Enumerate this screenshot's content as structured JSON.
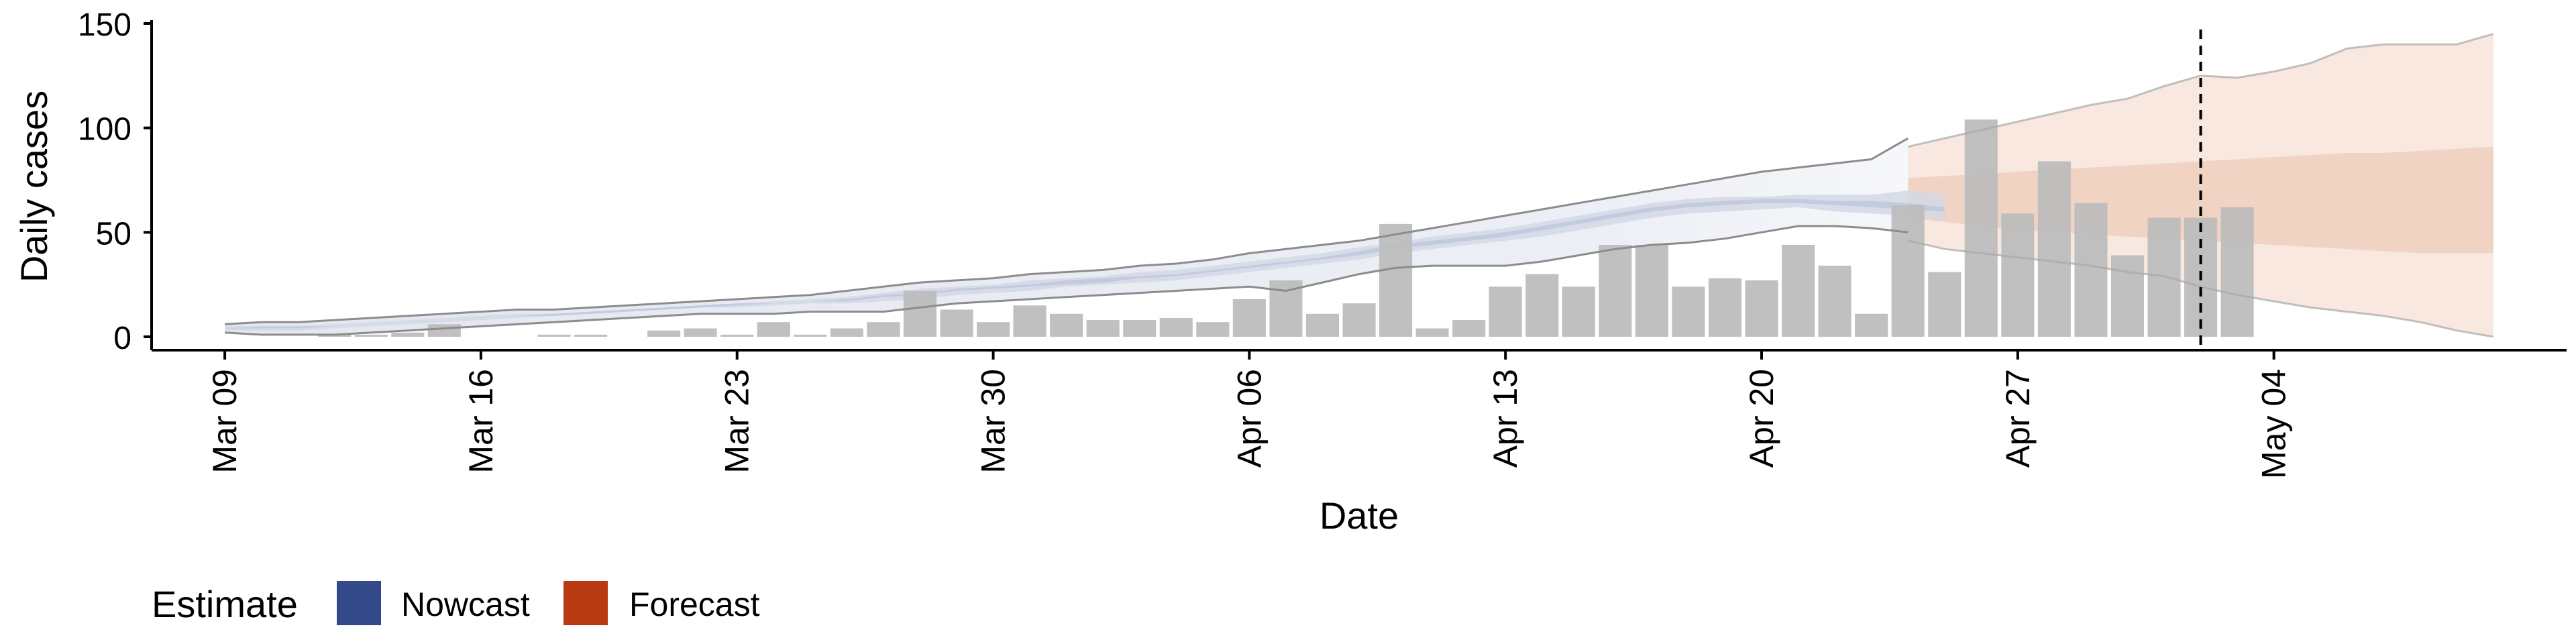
{
  "chart_data": {
    "type": "bar",
    "xlabel": "Date",
    "ylabel": "Daily cases",
    "ylim": [
      0,
      150
    ],
    "yticks": [
      0,
      50,
      100,
      150
    ],
    "xlim": [
      "2020-03-07",
      "2020-05-12"
    ],
    "x_ticks": [
      {
        "date": "2020-03-09",
        "label": "Mar 09"
      },
      {
        "date": "2020-03-16",
        "label": "Mar 16"
      },
      {
        "date": "2020-03-23",
        "label": "Mar 23"
      },
      {
        "date": "2020-03-30",
        "label": "Mar 30"
      },
      {
        "date": "2020-04-06",
        "label": "Apr 06"
      },
      {
        "date": "2020-04-13",
        "label": "Apr 13"
      },
      {
        "date": "2020-04-20",
        "label": "Apr 20"
      },
      {
        "date": "2020-04-27",
        "label": "Apr 27"
      },
      {
        "date": "2020-05-04",
        "label": "May 04"
      }
    ],
    "grid": false,
    "legend": {
      "position": "bottom-left",
      "title": "Estimate",
      "entries": [
        {
          "name": "Nowcast",
          "color": "#33498a"
        },
        {
          "name": "Forecast",
          "color": "#b83a10"
        }
      ]
    },
    "bar_color": "#bdbdbd",
    "reported_cases": {
      "start_date": "2020-03-09",
      "values": [
        0,
        0,
        0,
        1,
        1,
        2,
        6,
        0,
        0,
        1,
        1,
        0,
        3,
        4,
        1,
        7,
        1,
        4,
        7,
        22,
        13,
        7,
        15,
        11,
        8,
        8,
        9,
        7,
        18,
        27,
        11,
        16,
        54,
        4,
        8,
        24,
        30,
        24,
        44,
        44,
        24,
        28,
        27,
        44,
        34,
        11,
        63,
        31,
        104,
        59,
        84,
        64,
        39,
        57,
        57,
        62
      ]
    },
    "forecast_date": "2020-05-02",
    "nowcast": {
      "color": "#33498a",
      "dates_start": "2020-03-09",
      "band_outer": {
        "lower": [
          2,
          1,
          1,
          1,
          2,
          3,
          4,
          5,
          6,
          7,
          8,
          9,
          10,
          11,
          11,
          11,
          12,
          12,
          12,
          14,
          16,
          17,
          18,
          19,
          20,
          21,
          22,
          23,
          24,
          22,
          26,
          30,
          33,
          34,
          34,
          34,
          36,
          39,
          42,
          44,
          45,
          47,
          50,
          53,
          53,
          52,
          50,
          48
        ],
        "upper": [
          6,
          7,
          7,
          8,
          9,
          10,
          11,
          12,
          13,
          13,
          14,
          15,
          16,
          17,
          18,
          19,
          20,
          22,
          24,
          26,
          27,
          28,
          30,
          31,
          32,
          34,
          35,
          37,
          40,
          42,
          44,
          46,
          49,
          52,
          55,
          58,
          61,
          64,
          67,
          70,
          73,
          76,
          79,
          81,
          83,
          85,
          95,
          null
        ]
      },
      "band_mid": {
        "lower": [
          3,
          3,
          3,
          4,
          5,
          6,
          7,
          8,
          9,
          10,
          11,
          12,
          13,
          14,
          14,
          15,
          16,
          16,
          17,
          18,
          20,
          21,
          22,
          24,
          25,
          26,
          27,
          29,
          31,
          33,
          35,
          37,
          40,
          42,
          44,
          46,
          48,
          51,
          54,
          57,
          59,
          60,
          61,
          62,
          60,
          59,
          58,
          56
        ],
        "upper": [
          5,
          5,
          5,
          6,
          7,
          8,
          9,
          10,
          11,
          11,
          12,
          13,
          14,
          15,
          16,
          17,
          18,
          19,
          21,
          23,
          24,
          25,
          27,
          28,
          29,
          31,
          32,
          34,
          36,
          38,
          40,
          43,
          45,
          48,
          50,
          52,
          55,
          58,
          61,
          64,
          66,
          67,
          67,
          68,
          68,
          68,
          70,
          68
        ]
      },
      "band_inner": {
        "lower": [
          4,
          4,
          4,
          5,
          6,
          7,
          8,
          9,
          10,
          10,
          11,
          12,
          13,
          14,
          15,
          16,
          17,
          17,
          19,
          20,
          22,
          23,
          24,
          25,
          26,
          28,
          29,
          31,
          33,
          35,
          37,
          39,
          42,
          44,
          46,
          48,
          51,
          54,
          57,
          60,
          62,
          63,
          64,
          64,
          63,
          62,
          61,
          60
        ],
        "upper": [
          4,
          5,
          5,
          5,
          6,
          7,
          8,
          9,
          10,
          11,
          12,
          13,
          14,
          15,
          16,
          16,
          17,
          18,
          20,
          21,
          23,
          24,
          25,
          27,
          28,
          29,
          30,
          32,
          34,
          36,
          38,
          41,
          44,
          46,
          48,
          50,
          53,
          56,
          59,
          62,
          64,
          65,
          66,
          66,
          65,
          65,
          64,
          62
        ]
      }
    },
    "forecast": {
      "color": "#b83a10",
      "dates_start": "2020-04-24",
      "band_outer": {
        "lower": [
          46,
          42,
          40,
          38,
          36,
          34,
          31,
          29,
          24,
          20,
          17,
          14,
          12,
          10,
          7,
          3,
          0
        ],
        "upper": [
          91,
          95,
          99,
          103,
          107,
          111,
          114,
          120,
          125,
          124,
          127,
          131,
          138,
          140,
          140,
          140,
          145
        ]
      },
      "band_inner": {
        "lower": [
          57,
          55,
          53,
          51,
          50,
          49,
          48,
          47,
          46,
          45,
          44,
          43,
          42,
          41,
          40,
          40,
          40
        ],
        "upper": [
          76,
          77,
          78,
          79,
          80,
          81,
          82,
          83,
          84,
          85,
          86,
          87,
          88,
          88,
          89,
          90,
          91
        ]
      }
    }
  }
}
